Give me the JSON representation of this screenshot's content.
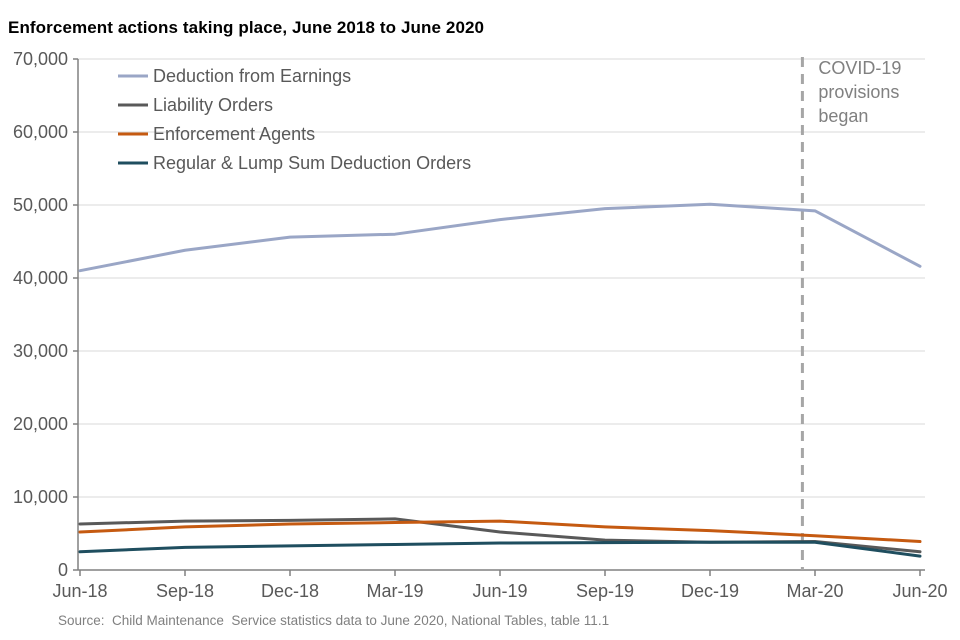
{
  "page": {
    "title": "Enforcement actions taking place, June 2018 to June 2020",
    "source": "Source:  Child Maintenance  Service statistics data to June 2020, National Tables, table 11.1"
  },
  "colors": {
    "title_text": "#000000",
    "axis_line": "#808080",
    "gridline": "#d9d9d9",
    "tick_label": "#595959",
    "legend_text": "#595959",
    "annotation_text": "#808080",
    "dashed_line": "#a6a6a6",
    "source_text": "#808080"
  },
  "chart_data": {
    "type": "line",
    "title": "Enforcement actions taking place, June 2018 to June 2020",
    "categories": [
      "Jun-18",
      "Sep-18",
      "Dec-18",
      "Mar-19",
      "Jun-19",
      "Sep-19",
      "Dec-19",
      "Mar-20",
      "Jun-20"
    ],
    "series": [
      {
        "name": "Deduction from Earnings",
        "color": "#9aa6c6",
        "values": [
          41000,
          43800,
          45600,
          46000,
          48000,
          49500,
          50100,
          49200,
          41600
        ]
      },
      {
        "name": "Liability Orders",
        "color": "#595959",
        "values": [
          6300,
          6700,
          6800,
          7000,
          5200,
          4100,
          3800,
          3900,
          2500
        ]
      },
      {
        "name": "Enforcement Agents",
        "color": "#c55a11",
        "values": [
          5200,
          5900,
          6300,
          6500,
          6700,
          5900,
          5400,
          4700,
          3900
        ]
      },
      {
        "name": "Regular & Lump Sum Deduction Orders",
        "color": "#1f4e5f",
        "values": [
          2500,
          3100,
          3300,
          3500,
          3700,
          3750,
          3800,
          3800,
          1900
        ]
      }
    ],
    "xlabel": "",
    "ylabel": "",
    "ylim": [
      0,
      70000
    ],
    "ytick_interval": 10000,
    "ytick_labels": [
      "0",
      "10,000",
      "20,000",
      "30,000",
      "40,000",
      "50,000",
      "60,000",
      "70,000"
    ],
    "grid": true,
    "legend_position": "top-left-inside",
    "annotation": {
      "text_lines": [
        "COVID-19",
        "provisions",
        "began"
      ],
      "vline_category_position": 6.88
    }
  }
}
